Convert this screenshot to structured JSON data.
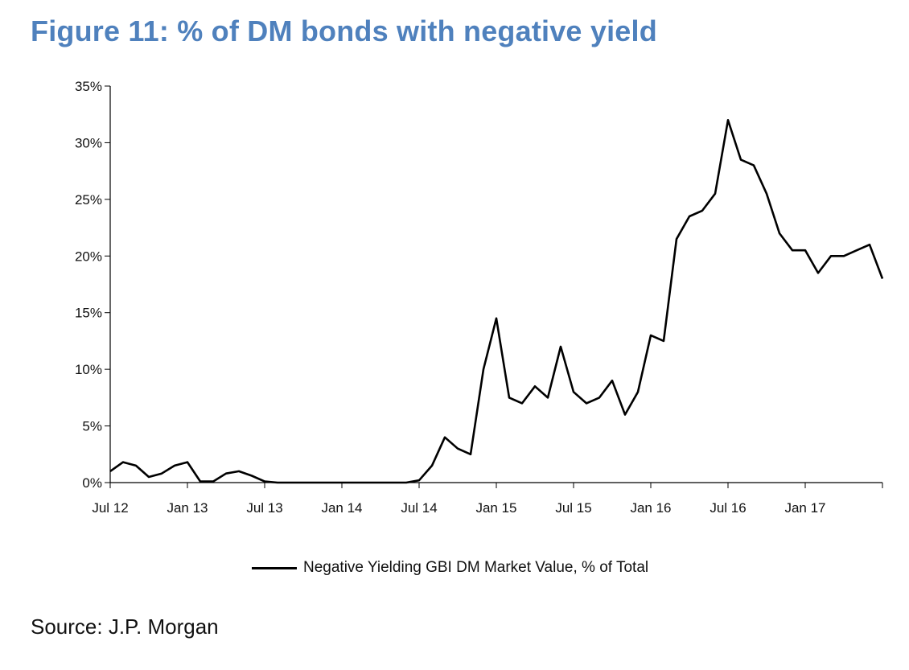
{
  "title": "Figure 11: % of DM bonds with negative yield",
  "source": "Source: J.P. Morgan",
  "colors": {
    "title": "#4f81bd",
    "line": "#000000",
    "axis": "#000000"
  },
  "chart_data": {
    "type": "line",
    "title": "Figure 11: % of DM bonds with negative yield",
    "xlabel": "",
    "ylabel": "",
    "x_tick_labels": [
      "Jul 12",
      "Jan 13",
      "Jul 13",
      "Jan 14",
      "Jul 14",
      "Jan 15",
      "Jul 15",
      "Jan 16",
      "Jul 16",
      "Jan 17"
    ],
    "y_tick_labels": [
      "0%",
      "5%",
      "10%",
      "15%",
      "20%",
      "25%",
      "30%",
      "35%"
    ],
    "ylim": [
      0,
      35
    ],
    "xlim": [
      "2012-07",
      "2017-07"
    ],
    "grid": false,
    "legend_position": "bottom",
    "series": [
      {
        "name": "Negative Yielding GBI DM Market Value, % of Total",
        "x": [
          "2012-07",
          "2012-08",
          "2012-09",
          "2012-10",
          "2012-11",
          "2012-12",
          "2013-01",
          "2013-02",
          "2013-03",
          "2013-04",
          "2013-05",
          "2013-06",
          "2013-07",
          "2013-08",
          "2013-10",
          "2014-01",
          "2014-04",
          "2014-06",
          "2014-07",
          "2014-08",
          "2014-09",
          "2014-10",
          "2014-11",
          "2014-12",
          "2015-01",
          "2015-02",
          "2015-03",
          "2015-04",
          "2015-05",
          "2015-06",
          "2015-07",
          "2015-08",
          "2015-09",
          "2015-10",
          "2015-11",
          "2015-12",
          "2016-01",
          "2016-02",
          "2016-03",
          "2016-04",
          "2016-05",
          "2016-06",
          "2016-07",
          "2016-08",
          "2016-09",
          "2016-10",
          "2016-11",
          "2016-12",
          "2017-01",
          "2017-02",
          "2017-03",
          "2017-04",
          "2017-05",
          "2017-06",
          "2017-07"
        ],
        "values": [
          1.0,
          1.8,
          1.5,
          0.5,
          0.8,
          1.5,
          1.8,
          0.1,
          0.1,
          0.8,
          1.0,
          0.6,
          0.1,
          0.0,
          0.0,
          0.0,
          0.0,
          0.0,
          0.2,
          1.5,
          4.0,
          3.0,
          2.5,
          10.0,
          14.5,
          7.5,
          7.0,
          8.5,
          7.5,
          12.0,
          8.0,
          7.0,
          7.5,
          9.0,
          6.0,
          8.0,
          13.0,
          12.5,
          21.5,
          23.5,
          24.0,
          25.5,
          32.0,
          28.5,
          28.0,
          25.5,
          22.0,
          20.5,
          20.5,
          18.5,
          20.0,
          20.0,
          20.5,
          21.0,
          18.0
        ]
      }
    ]
  }
}
